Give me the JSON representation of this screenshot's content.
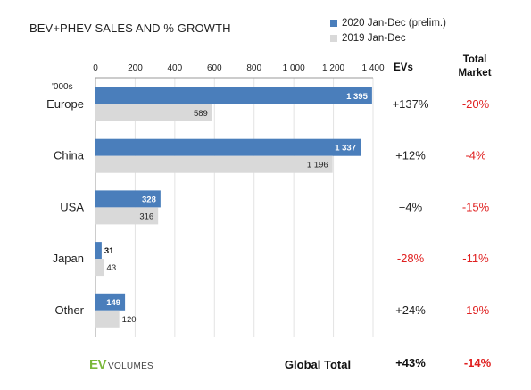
{
  "chart_data": {
    "type": "bar",
    "orientation": "horizontal",
    "title": "BEV+PHEV SALES AND % GROWTH",
    "unit_label": "'000s",
    "categories": [
      "Europe",
      "China",
      "USA",
      "Japan",
      "Other"
    ],
    "series": [
      {
        "name": "2020 Jan-Dec (prelim.)",
        "color": "#4a7ebb",
        "values": [
          1395,
          1337,
          328,
          31,
          149
        ],
        "labels": [
          "1 395",
          "1 337",
          "328",
          "31",
          "149"
        ]
      },
      {
        "name": "2019 Jan-Dec",
        "color": "#d9d9d9",
        "values": [
          589,
          1196,
          316,
          43,
          120
        ],
        "labels": [
          "589",
          "1 196",
          "316",
          "43",
          "120"
        ]
      }
    ],
    "xlim": [
      0,
      1400
    ],
    "xticks": [
      0,
      200,
      400,
      600,
      800,
      1000,
      1200,
      1400
    ],
    "xtick_labels": [
      "0",
      "200",
      "400",
      "600",
      "800",
      "1 000",
      "1 200",
      "1 400"
    ],
    "gridlines": true,
    "legend_position": "top-right",
    "columns": {
      "ev_header": "EVs",
      "market_header_line1": "Total",
      "market_header_line2": "Market",
      "ev_growth": [
        "+137%",
        "+12%",
        "+4%",
        "-28%",
        "+24%"
      ],
      "market_growth": [
        "-20%",
        "-4%",
        "-15%",
        "-11%",
        "-19%"
      ]
    },
    "global_total": {
      "label": "Global Total",
      "ev": "+43%",
      "market": "-14%"
    },
    "colors": {
      "positive": "#222222",
      "negative": "#e02020"
    }
  },
  "logo": {
    "brand": "EV",
    "suffix": "VOLUMES"
  }
}
